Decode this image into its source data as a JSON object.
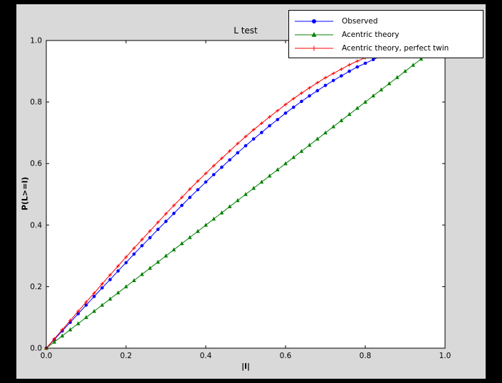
{
  "window": {
    "bg": "#000000"
  },
  "chart_data": {
    "type": "line",
    "title": "L test",
    "xlabel": "|l|",
    "ylabel": "P(L>=l)",
    "xlim": [
      0,
      1
    ],
    "ylim": [
      0,
      1
    ],
    "xticks": [
      0,
      0.2,
      0.4,
      0.6,
      0.8,
      1.0
    ],
    "yticks": [
      0,
      0.2,
      0.4,
      0.6,
      0.8,
      1.0
    ],
    "grid": false,
    "figure_bg": "#d9d9d9",
    "plot_bg": "#ffffff",
    "legend_position": "top-right",
    "series": [
      {
        "name": "Observed",
        "color": "#0000ff",
        "marker": "circle",
        "x": [
          0.0,
          0.02,
          0.04,
          0.06,
          0.08,
          0.1,
          0.12,
          0.14,
          0.16,
          0.18,
          0.2,
          0.22,
          0.24,
          0.26,
          0.28,
          0.3,
          0.32,
          0.34,
          0.36,
          0.38,
          0.4,
          0.42,
          0.44,
          0.46,
          0.48,
          0.5,
          0.52,
          0.54,
          0.56,
          0.58,
          0.6,
          0.62,
          0.64,
          0.66,
          0.68,
          0.7,
          0.72,
          0.74,
          0.76,
          0.78,
          0.8,
          0.82,
          0.84,
          0.86
        ],
        "y": [
          0.0,
          0.028,
          0.056,
          0.084,
          0.112,
          0.14,
          0.168,
          0.196,
          0.223,
          0.251,
          0.278,
          0.306,
          0.333,
          0.359,
          0.386,
          0.412,
          0.438,
          0.464,
          0.49,
          0.515,
          0.54,
          0.564,
          0.588,
          0.612,
          0.635,
          0.658,
          0.68,
          0.701,
          0.723,
          0.743,
          0.764,
          0.783,
          0.802,
          0.82,
          0.837,
          0.854,
          0.87,
          0.885,
          0.9,
          0.914,
          0.926,
          0.938,
          0.949,
          0.959
        ]
      },
      {
        "name": "Acentric theory",
        "color": "#008000",
        "marker": "triangle",
        "x": [
          0.0,
          0.02,
          0.04,
          0.06,
          0.08,
          0.1,
          0.12,
          0.14,
          0.16,
          0.18,
          0.2,
          0.22,
          0.24,
          0.26,
          0.28,
          0.3,
          0.32,
          0.34,
          0.36,
          0.38,
          0.4,
          0.42,
          0.44,
          0.46,
          0.48,
          0.5,
          0.52,
          0.54,
          0.56,
          0.58,
          0.6,
          0.62,
          0.64,
          0.66,
          0.68,
          0.7,
          0.72,
          0.74,
          0.76,
          0.78,
          0.8,
          0.82,
          0.84,
          0.86,
          0.88,
          0.9,
          0.92,
          0.94,
          0.96
        ],
        "y": [
          0.0,
          0.02,
          0.04,
          0.06,
          0.08,
          0.1,
          0.12,
          0.14,
          0.16,
          0.18,
          0.2,
          0.22,
          0.24,
          0.26,
          0.28,
          0.3,
          0.32,
          0.34,
          0.36,
          0.38,
          0.4,
          0.42,
          0.44,
          0.46,
          0.48,
          0.5,
          0.52,
          0.54,
          0.56,
          0.58,
          0.6,
          0.62,
          0.64,
          0.66,
          0.68,
          0.7,
          0.72,
          0.74,
          0.76,
          0.78,
          0.8,
          0.82,
          0.84,
          0.86,
          0.88,
          0.9,
          0.92,
          0.94,
          0.96
        ]
      },
      {
        "name": "Acentric theory, perfect twin",
        "color": "#ff0000",
        "marker": "plus",
        "x": [
          0.0,
          0.02,
          0.04,
          0.06,
          0.08,
          0.1,
          0.12,
          0.14,
          0.16,
          0.18,
          0.2,
          0.22,
          0.24,
          0.26,
          0.28,
          0.3,
          0.32,
          0.34,
          0.36,
          0.38,
          0.4,
          0.42,
          0.44,
          0.46,
          0.48,
          0.5,
          0.52,
          0.54,
          0.56,
          0.58,
          0.6,
          0.62,
          0.64,
          0.66,
          0.68,
          0.7,
          0.72,
          0.74,
          0.76,
          0.78,
          0.8,
          0.82,
          0.84,
          0.86
        ],
        "y": [
          0.0,
          0.03,
          0.06,
          0.09,
          0.12,
          0.15,
          0.179,
          0.209,
          0.238,
          0.267,
          0.296,
          0.325,
          0.353,
          0.381,
          0.409,
          0.437,
          0.464,
          0.49,
          0.517,
          0.543,
          0.568,
          0.593,
          0.617,
          0.641,
          0.665,
          0.688,
          0.71,
          0.731,
          0.752,
          0.772,
          0.792,
          0.811,
          0.829,
          0.846,
          0.863,
          0.879,
          0.893,
          0.907,
          0.921,
          0.933,
          0.944,
          0.954,
          0.964,
          0.972
        ]
      }
    ]
  }
}
